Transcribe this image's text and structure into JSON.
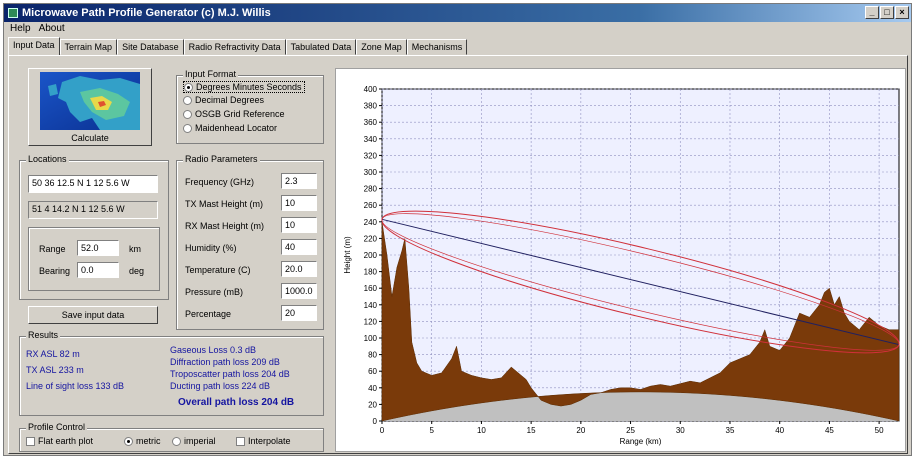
{
  "window": {
    "title": "Microwave Path Profile Generator  (c) M.J. Willis",
    "controls": [
      "_",
      "□",
      "×"
    ]
  },
  "menu": [
    "Help",
    "About"
  ],
  "tabs": [
    "Input Data",
    "Terrain Map",
    "Site Database",
    "Radio Refractivity Data",
    "Tabulated Data",
    "Zone Map",
    "Mechanisms"
  ],
  "calculate_label": "Calculate",
  "input_format": {
    "title": "Input Format",
    "options": [
      "Degrees Minutes Seconds",
      "Decimal Degrees",
      "OSGB Grid Reference",
      "Maidenhead Locator"
    ],
    "selected": 0
  },
  "locations": {
    "title": "Locations",
    "loc1": "50 36 12.5 N   1 12 5.6 W",
    "loc2": "51 4 14.2 N   1 12 5.6 W",
    "range_label": "Range",
    "range_value": "52.0",
    "range_unit": "km",
    "bearing_label": "Bearing",
    "bearing_value": "0.0",
    "bearing_unit": "deg"
  },
  "radio_params": {
    "title": "Radio Parameters",
    "rows": [
      {
        "label": "Frequency (GHz)",
        "value": "2.3"
      },
      {
        "label": "TX Mast Height (m)",
        "value": "10"
      },
      {
        "label": "RX Mast Height (m)",
        "value": "10"
      },
      {
        "label": "Humidity (%)",
        "value": "40"
      },
      {
        "label": "Temperature (C)",
        "value": "20.0"
      },
      {
        "label": "Pressure (mB)",
        "value": "1000.0"
      },
      {
        "label": "Percentage",
        "value": "20"
      }
    ]
  },
  "save_label": "Save input data",
  "results": {
    "title": "Results",
    "left": [
      "RX ASL 82 m",
      "TX ASL 233 m",
      "Line of sight loss 133 dB"
    ],
    "right": [
      "Gaseous Loss 0.3 dB",
      "Diffraction path loss 209 dB",
      "Troposcatter path loss 204 dB",
      "Ducting path loss 224 dB"
    ],
    "overall": "Overall path loss 204 dB"
  },
  "profile_control": {
    "title": "Profile Control",
    "flat_earth": "Flat earth plot",
    "metric": "metric",
    "imperial": "imperial",
    "interpolate": "Interpolate"
  },
  "colors": {
    "terrain": "#7a3a0a",
    "earth": "#c0c0c0",
    "fresnel": "#d0303a",
    "los": "#202060",
    "plot_bg": "#eef0ff"
  },
  "chart_data": {
    "type": "area",
    "title": "",
    "xlabel": "Range (km)",
    "ylabel": "Height (m)",
    "xlim": [
      0,
      52
    ],
    "ylim": [
      0,
      400
    ],
    "xticks": [
      0,
      5,
      10,
      15,
      20,
      25,
      30,
      35,
      40,
      45,
      50
    ],
    "yticks": [
      0,
      20,
      40,
      60,
      80,
      100,
      120,
      140,
      160,
      180,
      200,
      220,
      240,
      260,
      280,
      300,
      320,
      340,
      360,
      380,
      400
    ],
    "grid": true,
    "terrain": {
      "x": [
        0,
        0.5,
        1,
        1.5,
        2,
        2.3,
        2.7,
        3,
        3.5,
        4,
        5,
        6,
        7,
        7.5,
        8,
        9,
        10,
        11,
        12,
        13,
        14,
        14.5,
        15,
        16,
        17,
        18,
        19,
        20,
        21,
        22,
        23,
        24,
        25,
        26,
        27,
        28,
        29,
        30,
        31,
        32,
        33,
        34,
        35,
        36,
        37,
        38,
        38.5,
        39,
        40,
        41,
        42,
        43,
        44,
        44.5,
        45,
        45.5,
        46,
        46.5,
        47,
        48,
        49,
        50,
        51,
        52
      ],
      "y": [
        240,
        200,
        150,
        185,
        205,
        220,
        160,
        95,
        70,
        60,
        55,
        58,
        75,
        90,
        60,
        55,
        52,
        50,
        52,
        65,
        55,
        50,
        40,
        25,
        20,
        18,
        20,
        25,
        32,
        34,
        38,
        40,
        40,
        38,
        42,
        44,
        42,
        45,
        48,
        46,
        52,
        58,
        70,
        75,
        80,
        95,
        110,
        90,
        85,
        100,
        130,
        125,
        140,
        155,
        160,
        140,
        150,
        130,
        120,
        110,
        125,
        115,
        110,
        110
      ]
    },
    "earth_bulge_max": 35,
    "tx_height": 243,
    "rx_height": 92
  }
}
